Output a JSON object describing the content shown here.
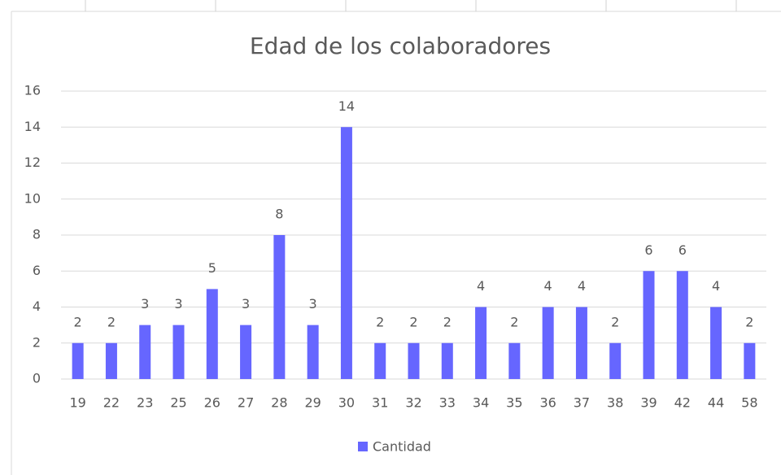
{
  "chart_data": {
    "type": "bar",
    "title": "Edad de los colaboradores",
    "categories": [
      "19",
      "22",
      "23",
      "25",
      "26",
      "27",
      "28",
      "29",
      "30",
      "31",
      "32",
      "33",
      "34",
      "35",
      "36",
      "37",
      "38",
      "39",
      "42",
      "44",
      "58"
    ],
    "series": [
      {
        "name": "Cantidad",
        "color": "#6666ff",
        "values": [
          2,
          2,
          3,
          3,
          5,
          3,
          8,
          3,
          14,
          2,
          2,
          2,
          4,
          2,
          4,
          4,
          2,
          6,
          6,
          4,
          2
        ]
      }
    ],
    "ylim": [
      0,
      16
    ],
    "yticks": [
      0,
      2,
      4,
      6,
      8,
      10,
      12,
      14,
      16
    ],
    "grid": true,
    "legend": "bottom"
  }
}
